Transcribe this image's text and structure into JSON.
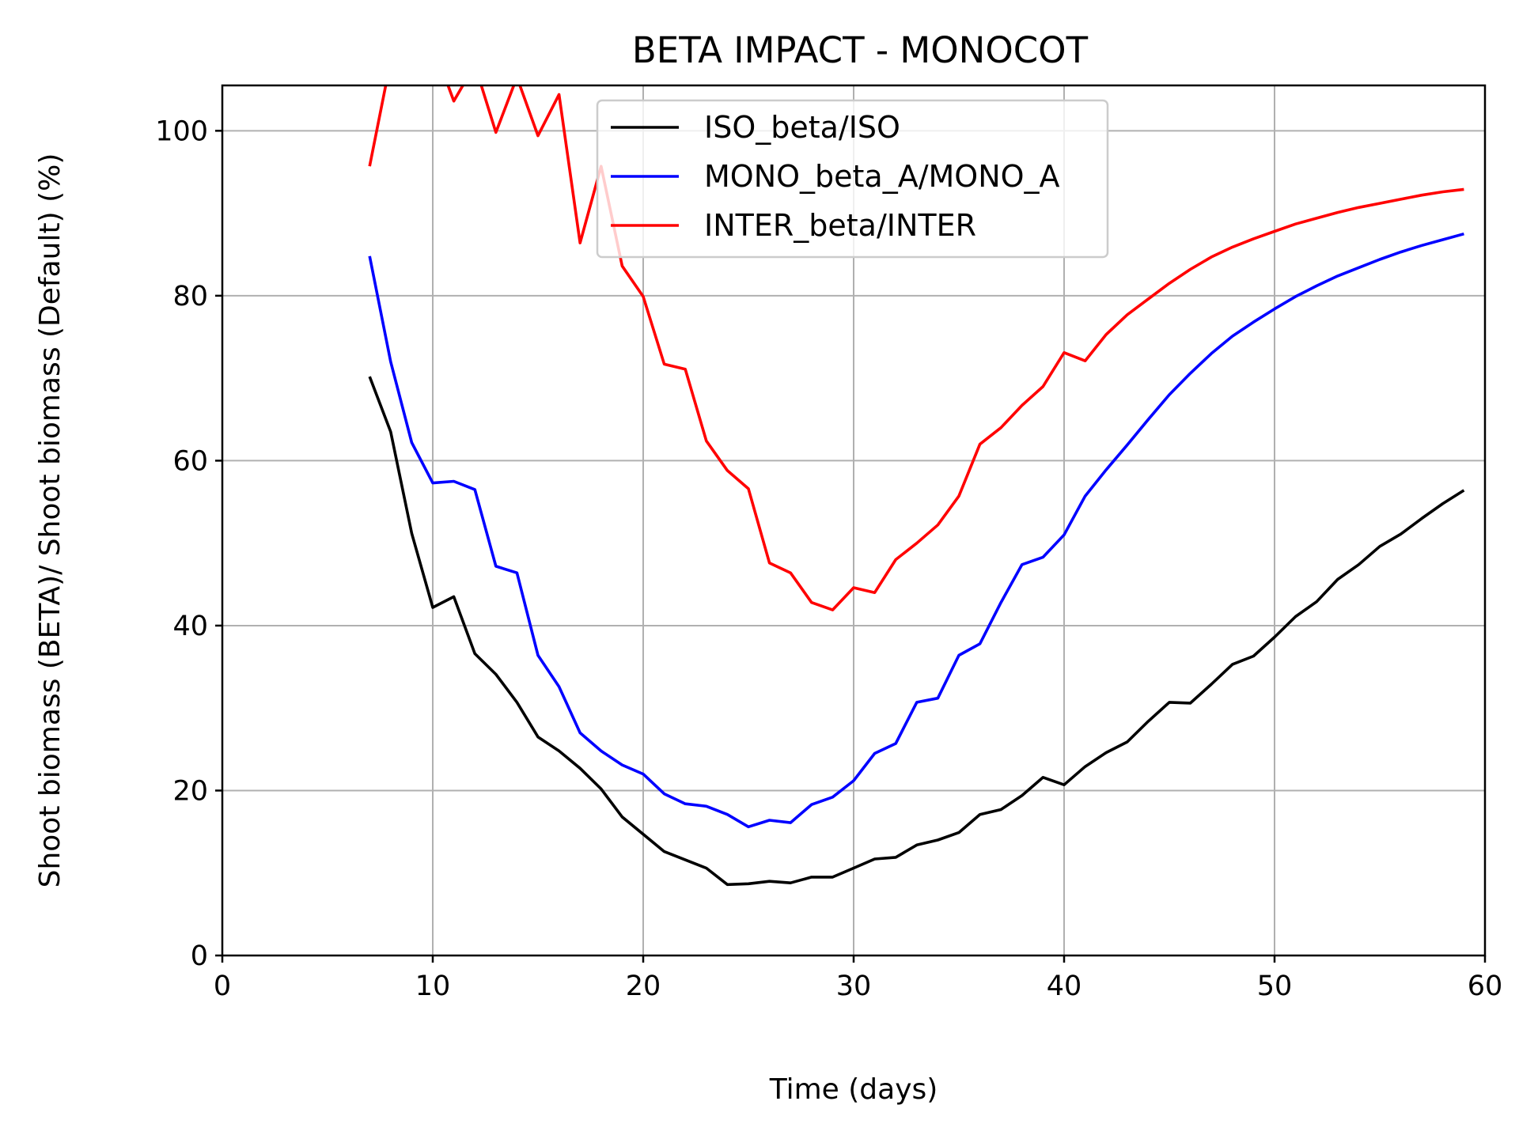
{
  "chart_data": {
    "type": "line",
    "title": "BETA IMPACT - MONOCOT",
    "xlabel": "Time (days)",
    "ylabel": "Shoot biomass (BETA)/ Shoot biomass (Default) (%)",
    "xlim": [
      0,
      60
    ],
    "ylim": [
      0,
      105.5
    ],
    "xticks": [
      "0",
      "10",
      "20",
      "30",
      "40",
      "50",
      "60"
    ],
    "yticks": [
      "0",
      "20",
      "40",
      "60",
      "80",
      "100"
    ],
    "grid": true,
    "legend_position": "top-center",
    "x": [
      7,
      8,
      9,
      10,
      11,
      12,
      13,
      14,
      15,
      16,
      17,
      18,
      19,
      20,
      21,
      22,
      23,
      24,
      25,
      26,
      27,
      28,
      29,
      30,
      31,
      32,
      33,
      34,
      35,
      36,
      37,
      38,
      39,
      40,
      41,
      42,
      43,
      44,
      45,
      46,
      47,
      48,
      49,
      50,
      51,
      52,
      53,
      54,
      55,
      56,
      57,
      58,
      59
    ],
    "series": [
      {
        "name": "ISO_beta/ISO",
        "color": "#000000",
        "values": [
          70.2,
          63.5,
          51.2,
          42.2,
          43.5,
          36.6,
          34.1,
          30.7,
          26.5,
          24.8,
          22.7,
          20.2,
          16.8,
          14.7,
          12.6,
          11.6,
          10.6,
          8.6,
          8.7,
          9.0,
          8.8,
          9.5,
          9.5,
          10.6,
          11.7,
          11.9,
          13.4,
          14.0,
          14.9,
          17.1,
          17.7,
          19.4,
          21.6,
          20.7,
          22.9,
          24.6,
          25.9,
          28.4,
          30.7,
          30.6,
          32.9,
          35.3,
          36.3,
          38.6,
          41.1,
          42.9,
          45.6,
          47.4,
          49.6,
          51.1,
          53.0,
          54.8,
          56.4
        ]
      },
      {
        "name": "MONO_beta_A/MONO_A",
        "color": "#0000ff",
        "values": [
          84.8,
          72.0,
          62.2,
          57.3,
          57.5,
          56.5,
          47.2,
          46.4,
          36.4,
          32.6,
          27.0,
          24.8,
          23.1,
          22.0,
          19.6,
          18.4,
          18.1,
          17.1,
          15.6,
          16.4,
          16.1,
          18.3,
          19.2,
          21.2,
          24.5,
          25.7,
          30.7,
          31.2,
          36.4,
          37.8,
          42.8,
          47.4,
          48.3,
          51.0,
          55.7,
          58.9,
          61.9,
          65.0,
          68.0,
          70.6,
          73.0,
          75.1,
          76.8,
          78.4,
          79.9,
          81.2,
          82.4,
          83.4,
          84.4,
          85.3,
          86.1,
          86.8,
          87.5
        ]
      },
      {
        "name": "INTER_beta/INTER",
        "color": "#ff0000",
        "values": [
          95.7,
          108.5,
          112.0,
          110.5,
          103.6,
          108.0,
          99.8,
          106.5,
          99.4,
          104.4,
          86.4,
          95.7,
          83.6,
          79.9,
          71.7,
          71.1,
          62.4,
          58.8,
          56.6,
          47.6,
          46.4,
          42.8,
          41.9,
          44.6,
          44.0,
          48.0,
          50.0,
          52.2,
          55.7,
          62.0,
          64.0,
          66.7,
          69.0,
          73.1,
          72.1,
          75.3,
          77.7,
          79.6,
          81.5,
          83.2,
          84.7,
          85.9,
          86.9,
          87.8,
          88.7,
          89.4,
          90.1,
          90.7,
          91.2,
          91.7,
          92.2,
          92.6,
          92.9
        ]
      }
    ]
  }
}
